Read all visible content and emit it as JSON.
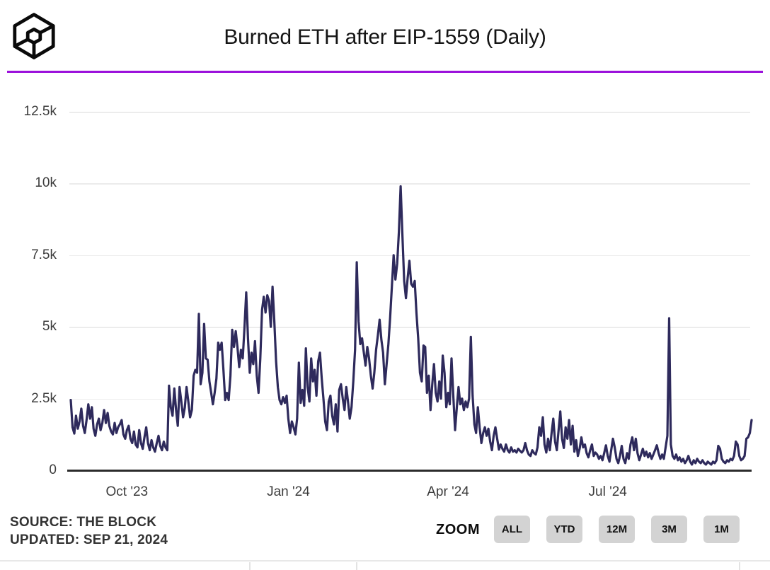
{
  "header": {
    "title": "Burned ETH after EIP-1559 (Daily)",
    "logo_name": "the-block-cube-logo",
    "accent_color": "#9b10db"
  },
  "chart_data": {
    "type": "line",
    "title": "Burned ETH after EIP-1559 (Daily)",
    "legend": "none",
    "grid": "horizontal",
    "ylim": [
      0,
      12500
    ],
    "x_domain_days": [
      0,
      388
    ],
    "x_ticks": [
      {
        "label": "Oct '23",
        "day": 32
      },
      {
        "label": "Jan '24",
        "day": 124
      },
      {
        "label": "Apr '24",
        "day": 215
      },
      {
        "label": "Jul '24",
        "day": 306
      }
    ],
    "y_ticks": [
      {
        "label": "0",
        "value": 0
      },
      {
        "label": "2.5k",
        "value": 2500
      },
      {
        "label": "5k",
        "value": 5000
      },
      {
        "label": "7.5k",
        "value": 7500
      },
      {
        "label": "10k",
        "value": 10000
      },
      {
        "label": "12.5k",
        "value": 12500
      }
    ],
    "series": [
      {
        "name": "Burned ETH (daily)",
        "color": "#2e2a5c",
        "values": [
          2450,
          1500,
          1280,
          1900,
          1450,
          1700,
          2150,
          1550,
          1300,
          1750,
          2300,
          1800,
          2200,
          1450,
          1200,
          1600,
          1800,
          1400,
          1650,
          2100,
          1650,
          2000,
          1550,
          1350,
          1250,
          1650,
          1300,
          1500,
          1600,
          1750,
          1250,
          1100,
          1400,
          1550,
          1100,
          950,
          1350,
          900,
          800,
          1400,
          950,
          750,
          1150,
          1500,
          950,
          700,
          1050,
          800,
          650,
          950,
          1200,
          850,
          700,
          1000,
          800,
          700,
          2950,
          2200,
          1900,
          2850,
          2100,
          1550,
          2900,
          2400,
          1850,
          2200,
          2900,
          2400,
          1850,
          2100,
          3300,
          3500,
          3400,
          5450,
          3000,
          3400,
          5100,
          3900,
          3850,
          3100,
          2700,
          2300,
          2700,
          3200,
          4450,
          4200,
          4450,
          3500,
          2450,
          2700,
          2450,
          3300,
          4900,
          4300,
          4850,
          4300,
          3600,
          4200,
          3900,
          5000,
          6200,
          4600,
          3400,
          4100,
          3700,
          4500,
          3300,
          2700,
          3900,
          5600,
          6050,
          5500,
          6100,
          5900,
          5000,
          6400,
          5200,
          3800,
          2900,
          2450,
          2300,
          2550,
          2350,
          2600,
          1800,
          1300,
          1700,
          1500,
          1250,
          1800,
          3750,
          2350,
          2800,
          2250,
          4250,
          2900,
          2400,
          3900,
          3100,
          3500,
          2600,
          3800,
          4100,
          3200,
          2500,
          1700,
          1400,
          2400,
          2600,
          1900,
          1600,
          2300,
          1350,
          2800,
          3000,
          2500,
          2100,
          2900,
          2400,
          1800,
          2200,
          3100,
          4200,
          7250,
          5200,
          4400,
          4600,
          4100,
          3650,
          4300,
          3900,
          3300,
          2850,
          3400,
          4200,
          4700,
          5250,
          4550,
          4100,
          3000,
          3700,
          4400,
          5300,
          6400,
          7500,
          6650,
          7200,
          8300,
          9900,
          8200,
          6600,
          6000,
          6700,
          7300,
          6500,
          6400,
          6600,
          5500,
          4600,
          3400,
          3100,
          4350,
          4300,
          2700,
          3300,
          2100,
          3000,
          3700,
          2700,
          2400,
          3100,
          2500,
          4000,
          3400,
          2200,
          2700,
          2300,
          3900,
          2600,
          1400,
          2200,
          2900,
          2300,
          2500,
          2100,
          2400,
          2200,
          2500,
          4650,
          2600,
          1600,
          1300,
          2200,
          1500,
          950,
          1300,
          1500,
          1200,
          1450,
          1000,
          700,
          1200,
          1500,
          1100,
          720,
          900,
          750,
          650,
          900,
          700,
          620,
          800,
          650,
          700,
          620,
          750,
          680,
          620,
          700,
          950,
          700,
          550,
          500,
          700,
          600,
          550,
          800,
          1500,
          1200,
          1850,
          900,
          620,
          1100,
          700,
          1300,
          1800,
          1000,
          700,
          1400,
          2050,
          1100,
          780,
          1500,
          1100,
          1750,
          900,
          1550,
          650,
          1050,
          500,
          750,
          1150,
          800,
          900,
          600,
          450,
          700,
          900,
          500,
          620,
          550,
          400,
          500,
          350,
          600,
          870,
          500,
          300,
          700,
          1100,
          800,
          400,
          250,
          500,
          850,
          400,
          250,
          600,
          400,
          900,
          1150,
          700,
          1100,
          600,
          350,
          550,
          750,
          500,
          650,
          450,
          600,
          400,
          550,
          700,
          870,
          600,
          400,
          550,
          400,
          800,
          1200,
          5300,
          900,
          500,
          400,
          550,
          350,
          450,
          300,
          400,
          250,
          350,
          500,
          300,
          200,
          350,
          250,
          400,
          300,
          250,
          350,
          250,
          200,
          300,
          250,
          200,
          300,
          250,
          350,
          850,
          750,
          400,
          300,
          250,
          350,
          300,
          400,
          350,
          500,
          1000,
          900,
          500,
          350,
          400,
          500,
          1100,
          1150,
          1300,
          1750
        ]
      }
    ]
  },
  "footer": {
    "source_line1": "SOURCE: THE BLOCK",
    "source_line2": "UPDATED: SEP 21, 2024",
    "zoom_label": "ZOOM",
    "zoom_buttons": [
      "ALL",
      "YTD",
      "12M",
      "3M",
      "1M"
    ]
  }
}
